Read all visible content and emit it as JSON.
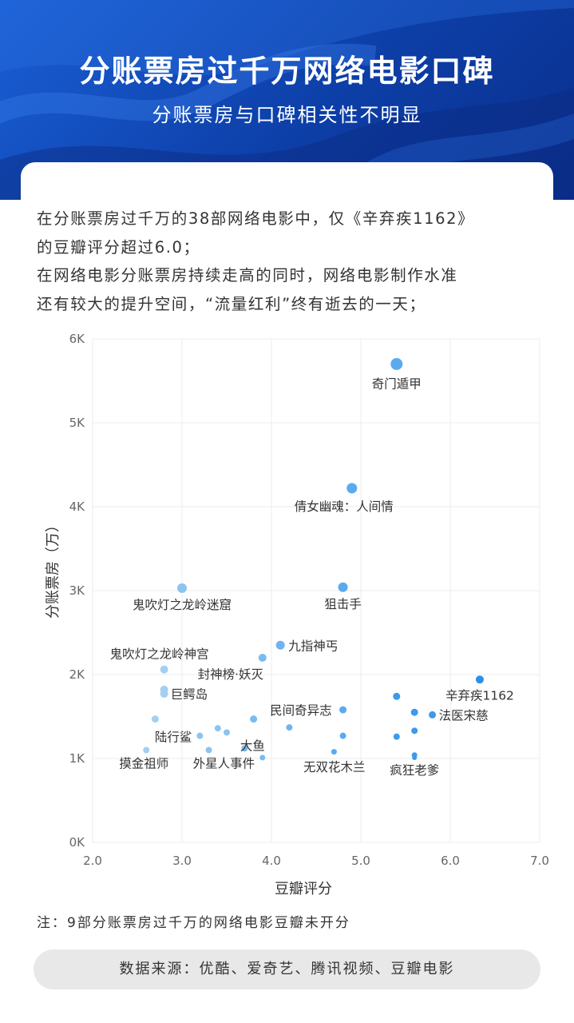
{
  "header": {
    "title": "分账票房过千万网络电影口碑",
    "subtitle": "分账票房与口碑相关性不明显"
  },
  "description": {
    "lines": [
      "在分账票房过千万的38部网络电影中，仅《辛弃疾1162》",
      "的豆瓣评分超过6.0；",
      "在网络电影分账票房持续走高的同时，网络电影制作水准",
      "还有较大的提升空间，“流量红利”终有逝去的一天；"
    ]
  },
  "chart_data": {
    "type": "scatter",
    "xlabel": "豆瓣评分",
    "ylabel": "分账票房（万）",
    "xlim": [
      2.0,
      7.0
    ],
    "ylim": [
      0,
      6000
    ],
    "x_ticks": [
      "2.0",
      "3.0",
      "4.0",
      "5.0",
      "6.0",
      "7.0"
    ],
    "y_ticks": [
      "0K",
      "1K",
      "2K",
      "3K",
      "4K",
      "5K",
      "6K"
    ],
    "grid": true,
    "points": [
      {
        "x": 5.4,
        "y": 5700,
        "label": "奇门遁甲",
        "size": 7.5,
        "color": "#5aaaf0"
      },
      {
        "x": 4.9,
        "y": 4220,
        "label": "倩女幽魂：人间情",
        "size": 6.5,
        "color": "#5aaaf0"
      },
      {
        "x": 3.0,
        "y": 3030,
        "label": "鬼吹灯之龙岭迷窟",
        "size": 6,
        "color": "#8cc4f0"
      },
      {
        "x": 4.8,
        "y": 3040,
        "label": "狙击手",
        "size": 6,
        "color": "#5aaaf0"
      },
      {
        "x": 4.1,
        "y": 2350,
        "label": "九指神丐",
        "size": 5.5,
        "color": "#6fb4ef"
      },
      {
        "x": 3.9,
        "y": 2200,
        "label": "封神榜·妖灭",
        "size": 5,
        "color": "#7abbef"
      },
      {
        "x": 2.8,
        "y": 2060,
        "label": "鬼吹灯之龙岭神宫",
        "size": 5,
        "color": "#a3d0f2"
      },
      {
        "x": 6.33,
        "y": 1940,
        "label": "辛弃疾1162",
        "size": 5,
        "color": "#2f8fe8"
      },
      {
        "x": 2.8,
        "y": 1820,
        "label": "",
        "size": 5,
        "color": "#a3d0f2"
      },
      {
        "x": 2.8,
        "y": 1770,
        "label": "巨鳄岛",
        "size": 5,
        "color": "#a3d0f2"
      },
      {
        "x": 5.4,
        "y": 1740,
        "label": "",
        "size": 4.5,
        "color": "#3d9aea"
      },
      {
        "x": 4.8,
        "y": 1580,
        "label": "民间奇异志",
        "size": 4.5,
        "color": "#5aaaf0"
      },
      {
        "x": 5.6,
        "y": 1550,
        "label": "",
        "size": 4.5,
        "color": "#3d9aea"
      },
      {
        "x": 5.8,
        "y": 1520,
        "label": "法医宋慈",
        "size": 4.5,
        "color": "#3d9aea"
      },
      {
        "x": 2.7,
        "y": 1470,
        "label": "",
        "size": 4.5,
        "color": "#a3d0f2"
      },
      {
        "x": 3.8,
        "y": 1470,
        "label": "",
        "size": 4.5,
        "color": "#7abbef"
      },
      {
        "x": 4.2,
        "y": 1370,
        "label": "",
        "size": 4,
        "color": "#6fb4ef"
      },
      {
        "x": 3.4,
        "y": 1360,
        "label": "",
        "size": 4,
        "color": "#8cc4f0"
      },
      {
        "x": 5.6,
        "y": 1330,
        "label": "",
        "size": 4,
        "color": "#3d9aea"
      },
      {
        "x": 3.5,
        "y": 1310,
        "label": "",
        "size": 4,
        "color": "#8cc4f0"
      },
      {
        "x": 3.2,
        "y": 1270,
        "label": "陆行鲨",
        "size": 4,
        "color": "#8cc4f0"
      },
      {
        "x": 4.8,
        "y": 1270,
        "label": "",
        "size": 4,
        "color": "#5aaaf0"
      },
      {
        "x": 5.4,
        "y": 1260,
        "label": "",
        "size": 4,
        "color": "#3d9aea"
      },
      {
        "x": 3.7,
        "y": 1120,
        "label": "大鱼",
        "size": 4,
        "color": "#7abbef"
      },
      {
        "x": 2.6,
        "y": 1100,
        "label": "摸金祖师",
        "size": 4,
        "color": "#a3d0f2"
      },
      {
        "x": 3.3,
        "y": 1100,
        "label": "外星人事件",
        "size": 4,
        "color": "#8cc4f0"
      },
      {
        "x": 4.7,
        "y": 1080,
        "label": "",
        "size": 3.5,
        "color": "#5aaaf0"
      },
      {
        "x": 5.6,
        "y": 1040,
        "label": "",
        "size": 3.5,
        "color": "#3d9aea"
      },
      {
        "x": 3.9,
        "y": 1010,
        "label": "无双花木兰",
        "size": 3.5,
        "color": "#7abbef"
      },
      {
        "x": 5.6,
        "y": 1010,
        "label": "疯狂老爹",
        "size": 3,
        "color": "#3d9aea"
      }
    ]
  },
  "note": "注：9部分账票房过千万的网络电影豆瓣未开分",
  "source": "数据来源：优酷、爱奇艺、腾讯视频、豆瓣电影"
}
